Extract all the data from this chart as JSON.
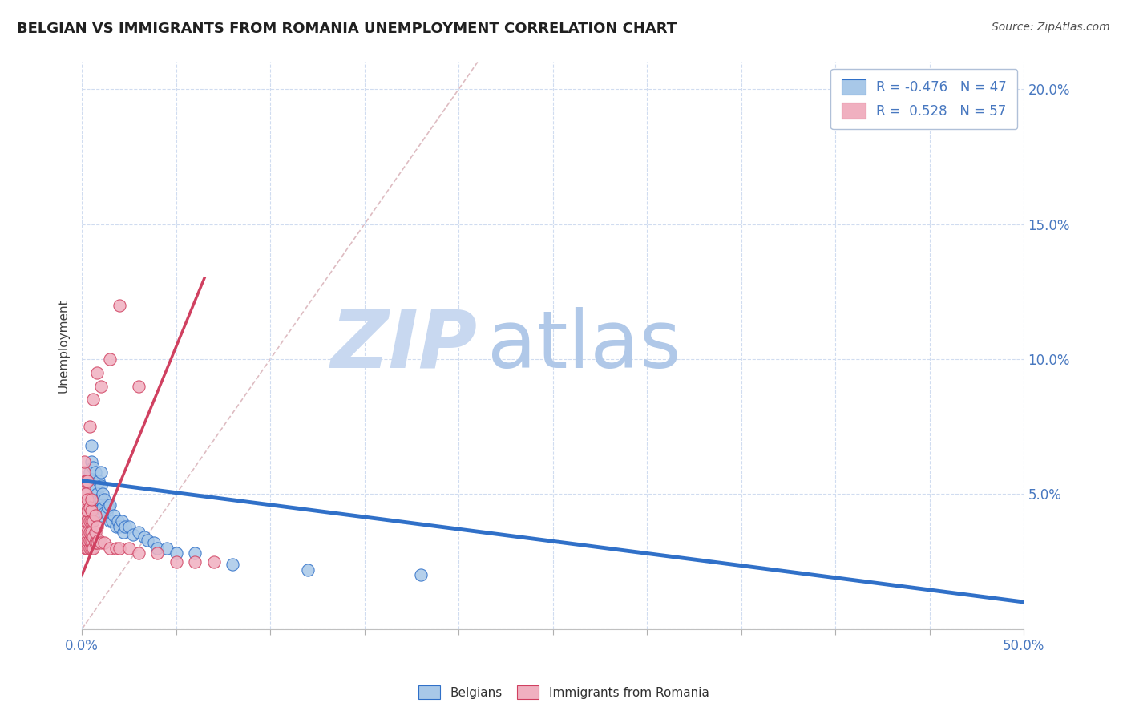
{
  "title": "BELGIAN VS IMMIGRANTS FROM ROMANIA UNEMPLOYMENT CORRELATION CHART",
  "source": "Source: ZipAtlas.com",
  "ylabel": "Unemployment",
  "xlim": [
    0.0,
    0.5
  ],
  "ylim": [
    0.0,
    0.21
  ],
  "xticks": [
    0.0,
    0.05,
    0.1,
    0.15,
    0.2,
    0.25,
    0.3,
    0.35,
    0.4,
    0.45,
    0.5
  ],
  "yticks_right": [
    0.0,
    0.05,
    0.1,
    0.15,
    0.2
  ],
  "ytick_right_labels": [
    "",
    "5.0%",
    "10.0%",
    "15.0%",
    "20.0%"
  ],
  "color_blue": "#A8C8E8",
  "color_pink": "#F0B0C0",
  "color_blue_line": "#3070C8",
  "color_pink_line": "#D04060",
  "color_dashed": "#D0A0A8",
  "color_title": "#202020",
  "color_source": "#505050",
  "color_axis": "#4878C0",
  "watermark_zip": "ZIP",
  "watermark_atlas": "atlas",
  "watermark_color_zip": "#C8D8F0",
  "watermark_color_atlas": "#B0C8E8",
  "blue_scatter_x": [
    0.003,
    0.004,
    0.005,
    0.005,
    0.005,
    0.006,
    0.006,
    0.007,
    0.007,
    0.007,
    0.008,
    0.008,
    0.009,
    0.009,
    0.01,
    0.01,
    0.01,
    0.01,
    0.011,
    0.011,
    0.012,
    0.012,
    0.013,
    0.014,
    0.015,
    0.015,
    0.016,
    0.017,
    0.018,
    0.019,
    0.02,
    0.021,
    0.022,
    0.023,
    0.025,
    0.027,
    0.03,
    0.033,
    0.035,
    0.038,
    0.04,
    0.045,
    0.05,
    0.06,
    0.08,
    0.12,
    0.18
  ],
  "blue_scatter_y": [
    0.05,
    0.058,
    0.055,
    0.062,
    0.068,
    0.053,
    0.06,
    0.045,
    0.052,
    0.058,
    0.043,
    0.05,
    0.048,
    0.055,
    0.042,
    0.048,
    0.053,
    0.058,
    0.045,
    0.05,
    0.043,
    0.048,
    0.043,
    0.045,
    0.04,
    0.046,
    0.04,
    0.042,
    0.038,
    0.04,
    0.038,
    0.04,
    0.036,
    0.038,
    0.038,
    0.035,
    0.036,
    0.034,
    0.033,
    0.032,
    0.03,
    0.03,
    0.028,
    0.028,
    0.024,
    0.022,
    0.02
  ],
  "pink_scatter_x": [
    0.001,
    0.001,
    0.001,
    0.001,
    0.001,
    0.001,
    0.001,
    0.001,
    0.001,
    0.001,
    0.001,
    0.002,
    0.002,
    0.002,
    0.002,
    0.002,
    0.002,
    0.002,
    0.002,
    0.003,
    0.003,
    0.003,
    0.003,
    0.003,
    0.003,
    0.003,
    0.004,
    0.004,
    0.004,
    0.004,
    0.004,
    0.005,
    0.005,
    0.005,
    0.005,
    0.005,
    0.005,
    0.006,
    0.006,
    0.006,
    0.007,
    0.007,
    0.007,
    0.008,
    0.008,
    0.009,
    0.01,
    0.012,
    0.015,
    0.018,
    0.02,
    0.025,
    0.03,
    0.04,
    0.05,
    0.06,
    0.07
  ],
  "pink_scatter_y": [
    0.035,
    0.038,
    0.04,
    0.042,
    0.045,
    0.048,
    0.05,
    0.052,
    0.055,
    0.058,
    0.062,
    0.03,
    0.035,
    0.038,
    0.04,
    0.043,
    0.046,
    0.05,
    0.055,
    0.03,
    0.033,
    0.036,
    0.04,
    0.044,
    0.048,
    0.055,
    0.03,
    0.033,
    0.036,
    0.04,
    0.045,
    0.03,
    0.033,
    0.036,
    0.04,
    0.044,
    0.048,
    0.03,
    0.034,
    0.04,
    0.032,
    0.036,
    0.042,
    0.032,
    0.038,
    0.033,
    0.032,
    0.032,
    0.03,
    0.03,
    0.03,
    0.03,
    0.028,
    0.028,
    0.025,
    0.025,
    0.025
  ],
  "pink_scatter_isolated": [
    [
      0.01,
      0.09
    ],
    [
      0.015,
      0.1
    ],
    [
      0.02,
      0.12
    ],
    [
      0.03,
      0.09
    ],
    [
      0.004,
      0.075
    ],
    [
      0.006,
      0.085
    ],
    [
      0.008,
      0.095
    ]
  ],
  "blue_line_x": [
    0.0,
    0.5
  ],
  "blue_line_y": [
    0.055,
    0.01
  ],
  "pink_line_x": [
    0.0,
    0.065
  ],
  "pink_line_y": [
    0.02,
    0.13
  ],
  "dashed_line_x": [
    0.0,
    0.21
  ],
  "dashed_line_y": [
    0.0,
    0.21
  ]
}
